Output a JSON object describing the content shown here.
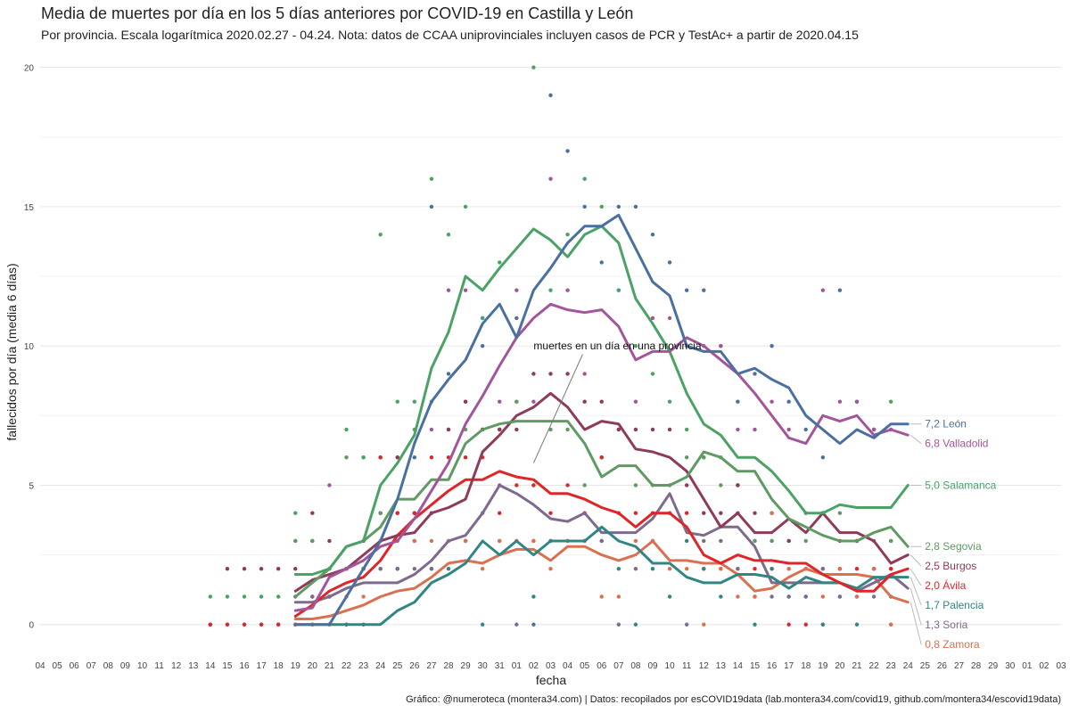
{
  "title": "Media de muertes por día en los 5 días anteriores por COVID-19 en Castilla y León",
  "subtitle": "Por provincia. Escala logarítmica  2020.02.27 - 04.24. Nota: datos de CCAA uniprovinciales incluyen casos de PCR y TestAc+ a partir de 2020.04.15",
  "caption": "Gráfico: @numeroteca (montera34.com) | Datos: recopilados por esCOVID19data (lab.montera34.com/covid19, github.com/montera34/escovid19data)",
  "annotation": "muertes en un día en una provincia",
  "chart_data": {
    "type": "line",
    "xlabel": "fecha",
    "ylabel": "fallecidos por día (media 6 días)",
    "ylim": [
      -1,
      20.5
    ],
    "yticks": [
      0,
      5,
      10,
      15,
      20
    ],
    "ytick_labels": [
      "0",
      "5",
      "10",
      "15",
      "20"
    ],
    "x_tick_labels": [
      "04",
      "05",
      "06",
      "07",
      "08",
      "09",
      "10",
      "11",
      "12",
      "13",
      "14",
      "15",
      "16",
      "17",
      "18",
      "19",
      "20",
      "21",
      "22",
      "23",
      "24",
      "25",
      "26",
      "27",
      "28",
      "29",
      "30",
      "31",
      "01",
      "02",
      "03",
      "04",
      "05",
      "06",
      "07",
      "08",
      "09",
      "10",
      "11",
      "12",
      "13",
      "14",
      "15",
      "16",
      "17",
      "18",
      "19",
      "20",
      "21",
      "22",
      "23",
      "24",
      "25",
      "26",
      "27",
      "28",
      "29",
      "30",
      "01",
      "02",
      "03"
    ],
    "x_start": "2020-03-04",
    "x_end": "2020-05-03",
    "grid": true,
    "legend": "direct labels at line ends (right)",
    "series": [
      {
        "name": "León",
        "label": "7,2 León",
        "color": "#4a6fa1",
        "start": "2020-03-19",
        "values": [
          0,
          0,
          0,
          1.0,
          2.0,
          3.0,
          4.5,
          6.5,
          8.0,
          8.8,
          9.5,
          10.8,
          11.5,
          10.3,
          12.0,
          12.8,
          13.7,
          14.3,
          14.3,
          14.7,
          13.5,
          12.3,
          11.8,
          10.0,
          9.8,
          9.8,
          9.0,
          9.2,
          8.8,
          8.5,
          7.5,
          7.0,
          6.5,
          7.0,
          6.7,
          7.2,
          7.2
        ],
        "points": [
          0,
          0,
          1,
          0,
          6,
          4,
          2,
          6,
          15,
          9,
          8,
          10,
          7,
          11,
          0,
          19,
          17,
          15,
          13,
          15,
          15,
          14,
          13,
          12,
          12,
          10,
          8,
          9,
          10,
          8,
          7,
          6,
          12,
          8,
          7,
          3
        ]
      },
      {
        "name": "Valladolid",
        "label": "6,8 Valladolid",
        "color": "#a3559c",
        "start": "2020-03-19",
        "values": [
          0.5,
          0.6,
          1.7,
          2.0,
          2.3,
          2.8,
          3.0,
          3.8,
          4.8,
          5.8,
          7.2,
          8.2,
          9.3,
          10.3,
          11.0,
          11.5,
          11.3,
          11.2,
          11.3,
          10.7,
          9.5,
          9.8,
          9.8,
          10.3,
          10.0,
          9.5,
          9.0,
          8.3,
          7.5,
          6.7,
          6.5,
          7.5,
          7.3,
          7.5,
          6.8,
          7.0,
          6.8
        ],
        "points": [
          3,
          3,
          5,
          2,
          2,
          4,
          4,
          4,
          7,
          12,
          12,
          11,
          8,
          12,
          8,
          16,
          12,
          9,
          6,
          12,
          8,
          11,
          11,
          10,
          10,
          10,
          7,
          7,
          8,
          7,
          4,
          12,
          8,
          8,
          7,
          7
        ]
      },
      {
        "name": "Salamanca",
        "label": "5,0 Salamanca",
        "color": "#4ba265",
        "start": "2020-03-19",
        "values": [
          1.8,
          1.8,
          2.0,
          2.8,
          3.0,
          5.0,
          5.8,
          6.8,
          9.2,
          10.5,
          12.5,
          12.0,
          12.8,
          13.5,
          14.2,
          13.8,
          13.2,
          14.0,
          14.3,
          13.7,
          11.7,
          10.8,
          9.8,
          8.3,
          7.2,
          6.8,
          6.0,
          6.0,
          5.5,
          4.8,
          4.0,
          4.0,
          4.3,
          4.2,
          4.2,
          4.2,
          5.0
        ],
        "points": [
          4,
          3,
          2,
          7,
          6,
          14,
          8,
          8,
          16,
          14,
          15,
          11,
          13,
          8,
          20,
          12,
          14,
          16,
          15,
          12,
          10,
          9,
          8,
          7,
          6,
          6,
          5,
          3,
          3,
          2,
          2,
          2,
          2,
          3,
          2,
          8
        ]
      },
      {
        "name": "Segovia",
        "label": "2,8 Segovia",
        "color": "#5e9a62",
        "start": "2020-03-19",
        "values": [
          1.0,
          1.5,
          2.0,
          2.8,
          3.0,
          3.5,
          4.5,
          4.5,
          5.2,
          5.2,
          6.5,
          7.0,
          7.2,
          7.3,
          7.3,
          7.3,
          7.3,
          6.5,
          5.3,
          5.7,
          5.7,
          5.0,
          5.0,
          5.3,
          6.2,
          6.0,
          5.5,
          5.5,
          4.5,
          3.8,
          3.5,
          3.2,
          3.0,
          3.0,
          3.3,
          3.5,
          2.8
        ],
        "points": [
          3,
          3,
          2,
          6,
          2,
          4,
          6,
          7,
          8,
          7,
          7,
          7,
          7,
          8,
          5,
          7,
          7,
          5,
          6,
          7,
          5,
          5,
          5,
          6,
          6,
          5,
          5,
          3,
          3,
          3,
          3,
          4,
          4,
          3,
          3,
          3
        ]
      },
      {
        "name": "Burgos",
        "label": "2,5 Burgos",
        "color": "#8e3a59",
        "start": "2020-03-19",
        "values": [
          1.2,
          1.6,
          1.8,
          2.0,
          2.5,
          3.0,
          3.2,
          3.3,
          4.0,
          4.2,
          4.5,
          6.2,
          6.8,
          7.5,
          7.8,
          8.3,
          7.8,
          7.0,
          7.3,
          7.2,
          6.3,
          6.2,
          6.0,
          5.5,
          4.5,
          3.5,
          4.0,
          3.3,
          3.3,
          3.8,
          3.3,
          4.0,
          3.3,
          3.3,
          3.0,
          2.2,
          2.5
        ],
        "points": [
          2,
          4,
          3,
          2,
          3,
          6,
          6,
          4,
          4,
          7,
          8,
          7,
          7,
          7,
          9,
          9,
          9,
          8,
          8,
          7,
          7,
          7,
          7,
          5,
          4,
          4,
          5,
          4,
          4,
          3,
          2,
          4,
          3,
          3,
          2,
          2
        ]
      },
      {
        "name": "Ávila",
        "label": "2,0 Ávila",
        "color": "#e02528",
        "start": "2020-03-19",
        "values": [
          0.3,
          0.7,
          1.2,
          1.5,
          1.7,
          2.3,
          3.2,
          3.8,
          4.3,
          4.8,
          5.2,
          5.2,
          5.5,
          5.3,
          5.2,
          4.7,
          4.7,
          4.5,
          4.2,
          4.0,
          3.5,
          4.0,
          4.0,
          3.5,
          2.5,
          2.2,
          2.5,
          2.3,
          2.3,
          2.2,
          2.2,
          1.8,
          1.5,
          1.2,
          1.2,
          1.8,
          2.0
        ],
        "points": [
          0,
          1,
          1,
          2,
          2,
          6,
          4,
          4,
          6,
          6,
          6,
          6,
          4,
          5,
          5,
          4,
          5,
          4,
          6,
          4,
          4,
          4,
          4,
          4,
          2,
          2,
          4,
          2,
          2,
          0,
          0,
          0,
          2,
          2,
          2,
          2
        ]
      },
      {
        "name": "Palencia",
        "label": "1,7 Palencia",
        "color": "#318584",
        "start": "2020-03-19",
        "values": [
          0,
          0,
          0,
          0,
          0,
          0,
          0.5,
          0.8,
          1.5,
          1.8,
          2.2,
          3.0,
          2.5,
          3.0,
          2.5,
          3.0,
          3.0,
          3.0,
          3.5,
          3.0,
          2.8,
          2.2,
          2.2,
          1.7,
          1.5,
          1.5,
          1.8,
          1.8,
          1.7,
          1.3,
          1.7,
          1.5,
          1.5,
          1.3,
          1.7,
          1.7,
          1.7
        ],
        "points": [
          0,
          0,
          0,
          0,
          0,
          2,
          2,
          3,
          2,
          2,
          3,
          0,
          3,
          3,
          1,
          3,
          3,
          3,
          3,
          2,
          0,
          2,
          1,
          3,
          2,
          1,
          2,
          0,
          2,
          1,
          1,
          0,
          1,
          0,
          2,
          1
        ]
      },
      {
        "name": "Soria",
        "label": "1,3 Soria",
        "color": "#7d6a8c",
        "start": "2020-03-19",
        "values": [
          0.8,
          0.8,
          1.0,
          1.3,
          1.5,
          1.5,
          1.5,
          1.8,
          2.3,
          3.0,
          3.2,
          4.0,
          5.0,
          4.7,
          4.3,
          3.8,
          3.7,
          4.0,
          3.3,
          3.3,
          3.3,
          3.8,
          4.7,
          3.3,
          3.2,
          3.5,
          3.5,
          2.8,
          1.5,
          1.5,
          1.5,
          1.5,
          1.5,
          1.2,
          1.5,
          1.8,
          1.3
        ],
        "points": [
          1,
          1,
          1,
          2,
          2,
          2,
          2,
          2,
          2,
          3,
          3,
          4,
          5,
          0,
          3,
          3,
          3,
          3,
          3,
          0,
          2,
          3,
          4,
          0,
          3,
          3,
          2,
          1,
          1,
          1,
          1,
          2,
          1,
          1,
          1,
          0
        ]
      },
      {
        "name": "Zamora",
        "label": "0,8 Zamora",
        "color": "#d97150",
        "start": "2020-03-19",
        "values": [
          0.2,
          0.2,
          0.3,
          0.5,
          0.7,
          1.0,
          1.2,
          1.3,
          1.7,
          2.2,
          2.3,
          2.2,
          2.5,
          2.7,
          2.7,
          2.3,
          2.8,
          2.8,
          2.5,
          2.3,
          2.5,
          3.0,
          2.3,
          2.3,
          2.2,
          2.2,
          1.8,
          1.2,
          1.3,
          1.7,
          2.0,
          1.8,
          1.8,
          1.8,
          1.7,
          1.0,
          0.8
        ],
        "points": [
          0,
          0,
          0,
          1,
          1,
          3,
          3,
          3,
          3,
          3,
          3,
          2,
          3,
          3,
          3,
          2,
          3,
          3,
          1,
          1,
          3,
          3,
          2,
          2,
          0,
          2,
          1,
          1,
          4,
          2,
          2,
          1,
          2,
          1,
          2,
          0
        ]
      }
    ],
    "pre_points": [
      {
        "series": "León",
        "values": [
          0,
          0,
          0,
          0,
          0
        ]
      },
      {
        "series": "Salamanca",
        "values": [
          1,
          1,
          1,
          1,
          1
        ]
      },
      {
        "series": "Burgos",
        "values": [
          0,
          2,
          2,
          2,
          2
        ]
      },
      {
        "series": "Ávila",
        "values": [
          0,
          0,
          0,
          0,
          0
        ]
      }
    ]
  }
}
